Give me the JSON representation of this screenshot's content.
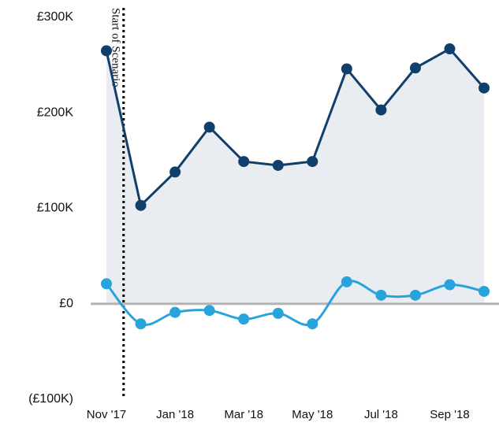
{
  "chart_data": {
    "type": "line",
    "categories": [
      "Nov '17",
      null,
      "Jan '18",
      null,
      "Mar '18",
      null,
      "May '18",
      null,
      "Jul '18",
      null,
      "Sep '18",
      null
    ],
    "series": [
      {
        "color": "#113f6c",
        "values": [
          265000,
          103000,
          138000,
          185000,
          149000,
          145000,
          149000,
          246000,
          203000,
          247000,
          267000,
          226000
        ]
      },
      {
        "color": "#29a3db",
        "values": [
          21000,
          -21000,
          -9000,
          -7000,
          -16000,
          -10000,
          -21000,
          23000,
          9000,
          9000,
          20000,
          13000
        ]
      }
    ],
    "area_color": "#e9edf2",
    "ylim": [
      -100000,
      300000
    ],
    "yticks": [
      {
        "value": -100000,
        "label": "(£100K)"
      },
      {
        "value": 0,
        "label": "£0"
      },
      {
        "value": 100000,
        "label": "£100K"
      },
      {
        "value": 200000,
        "label": "£200K"
      },
      {
        "value": 300000,
        "label": "£300K"
      }
    ],
    "annotation": "Start of Scenario"
  }
}
